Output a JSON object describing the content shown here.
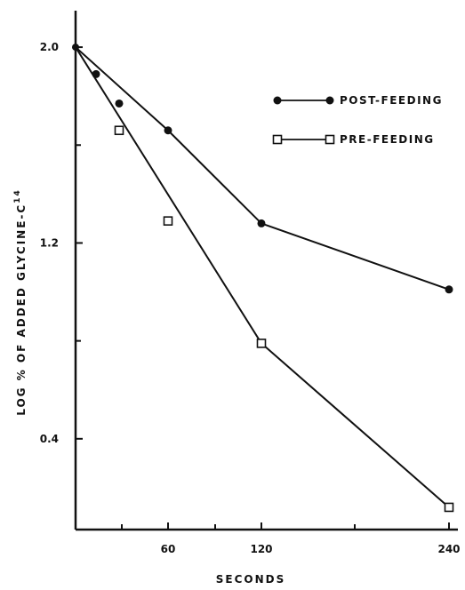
{
  "chart_data": {
    "type": "line",
    "title": "",
    "xlabel": "SECONDS",
    "ylabel": "LOG % OF ADDED GLYCINE-C",
    "ylabel_superscript": "14",
    "x_ticks": [
      "60",
      "120",
      "240"
    ],
    "y_ticks": [
      "2.0",
      "1.2",
      "0.4"
    ],
    "ylim": [
      0,
      2.2
    ],
    "grid": false,
    "legend_position": "top-right",
    "series": [
      {
        "name": "POST-FEEDING",
        "marker": "filled-circle",
        "color": "#111111",
        "points": [
          {
            "x": "0",
            "y": 2.0
          },
          {
            "x": "15",
            "y": 1.89
          },
          {
            "x": "30",
            "y": 1.77
          },
          {
            "x": "60",
            "y": 1.66
          },
          {
            "x": "120",
            "y": 1.28
          },
          {
            "x": "240",
            "y": 1.01
          }
        ],
        "fit_line": [
          {
            "x": "0",
            "y": 2.0
          },
          {
            "x": "60",
            "y": 1.66
          },
          {
            "x": "120",
            "y": 1.28
          },
          {
            "x": "240",
            "y": 1.01
          }
        ]
      },
      {
        "name": "PRE-FEEDING",
        "marker": "open-square",
        "color": "#111111",
        "points": [
          {
            "x": "0",
            "y": 2.0
          },
          {
            "x": "30",
            "y": 1.66
          },
          {
            "x": "60",
            "y": 1.29
          },
          {
            "x": "120",
            "y": 0.79
          },
          {
            "x": "240",
            "y": 0.12
          }
        ],
        "fit_line": [
          {
            "x": "0",
            "y": 2.0
          },
          {
            "x": "120",
            "y": 0.79
          },
          {
            "x": "240",
            "y": 0.12
          }
        ]
      }
    ]
  }
}
